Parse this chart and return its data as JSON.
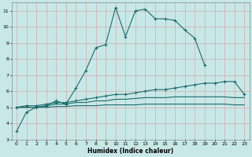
{
  "xlabel": "Humidex (Indice chaleur)",
  "bg_color": "#c8e8e8",
  "grid_color": "#d4a8a8",
  "line_color": "#1a6b6b",
  "xlim": [
    -0.5,
    23.5
  ],
  "ylim": [
    3,
    11.5
  ],
  "xticks": [
    0,
    1,
    2,
    3,
    4,
    5,
    6,
    7,
    8,
    9,
    10,
    11,
    12,
    13,
    14,
    15,
    16,
    17,
    18,
    19,
    20,
    21,
    22,
    23
  ],
  "yticks": [
    3,
    4,
    5,
    6,
    7,
    8,
    9,
    10,
    11
  ],
  "series": [
    {
      "x": [
        0,
        1,
        2,
        3,
        4,
        5,
        6,
        7,
        8,
        9,
        10,
        11,
        12,
        13,
        14,
        15,
        16,
        17,
        18,
        19
      ],
      "y": [
        3.5,
        4.7,
        5.0,
        5.1,
        5.4,
        5.2,
        6.2,
        7.3,
        8.7,
        8.9,
        11.2,
        9.4,
        11.0,
        11.1,
        10.5,
        10.5,
        10.4,
        9.8,
        9.3,
        7.6
      ],
      "marker": true
    },
    {
      "x": [
        0,
        1,
        2,
        3,
        4,
        5,
        6,
        7,
        8,
        9,
        10,
        11,
        12,
        13,
        14,
        15,
        16,
        17,
        18,
        19,
        20,
        21,
        22,
        23
      ],
      "y": [
        5.0,
        5.1,
        5.1,
        5.2,
        5.3,
        5.3,
        5.4,
        5.5,
        5.6,
        5.7,
        5.8,
        5.8,
        5.9,
        6.0,
        6.1,
        6.1,
        6.2,
        6.3,
        6.4,
        6.5,
        6.5,
        6.6,
        6.6,
        5.8
      ],
      "marker": true
    },
    {
      "x": [
        0,
        1,
        2,
        3,
        4,
        5,
        6,
        7,
        8,
        9,
        10,
        11,
        12,
        13,
        14,
        15,
        16,
        17,
        18,
        19,
        20,
        21,
        22,
        23
      ],
      "y": [
        5.0,
        5.0,
        5.0,
        5.1,
        5.2,
        5.2,
        5.3,
        5.3,
        5.4,
        5.4,
        5.5,
        5.5,
        5.55,
        5.6,
        5.6,
        5.6,
        5.65,
        5.65,
        5.65,
        5.65,
        5.65,
        5.65,
        5.6,
        5.6
      ],
      "marker": false
    },
    {
      "x": [
        0,
        1,
        2,
        3,
        4,
        5,
        6,
        7,
        8,
        9,
        10,
        11,
        12,
        13,
        14,
        15,
        16,
        17,
        18,
        19,
        20,
        21,
        22,
        23
      ],
      "y": [
        5.0,
        5.0,
        5.0,
        5.0,
        5.05,
        5.05,
        5.1,
        5.1,
        5.1,
        5.15,
        5.15,
        5.15,
        5.15,
        5.2,
        5.2,
        5.2,
        5.2,
        5.2,
        5.2,
        5.2,
        5.2,
        5.2,
        5.15,
        5.15
      ],
      "marker": false
    }
  ]
}
